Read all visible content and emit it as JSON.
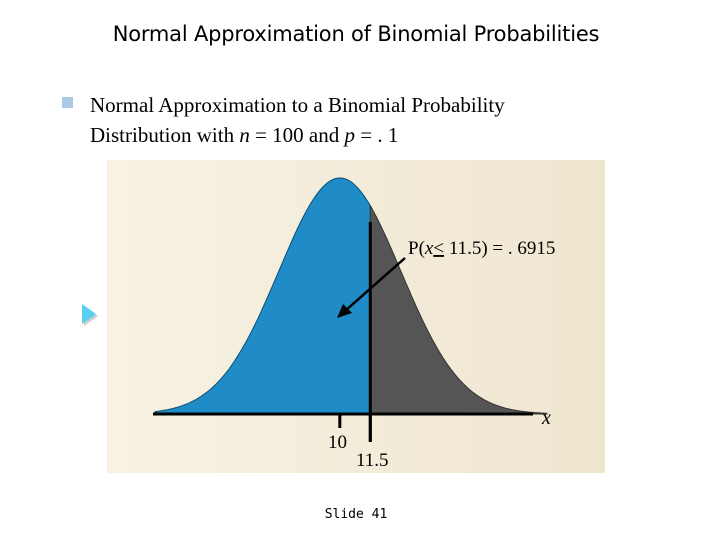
{
  "slide": {
    "title": "Normal Approximation of Binomial Probabilities",
    "bullet": {
      "line1": "Normal Approximation to a Binomial Probability",
      "line2_prefix": "Distribution with ",
      "n_symbol": "n",
      "n_eq": " = 100 and ",
      "p_symbol": "p",
      "p_eq": " = . 1"
    },
    "slide_number": "Slide 41"
  },
  "colors": {
    "panel": "#f3ecd9",
    "left_fill": "#1f8cc8",
    "right_fill": "#555555",
    "bullet": "#a9c9e6",
    "nav_arrow": "#5ad0f0"
  },
  "chart_data": {
    "type": "area",
    "distribution": "normal",
    "mean": 10,
    "sd": 3,
    "shaded_below": 11.5,
    "probability_label": "P(x < 11.5) = . 6915",
    "prob_prefix": "P(",
    "prob_var": "x",
    "prob_le": "<",
    "prob_suffix": " 11.5) = . 6915",
    "axis_label": "x",
    "tick_labels": [
      "10",
      "11.5"
    ],
    "tick_values": [
      10,
      11.5
    ],
    "x_range": [
      0.9,
      20.2
    ]
  },
  "icons": {
    "nav": "play-arrow-icon"
  }
}
